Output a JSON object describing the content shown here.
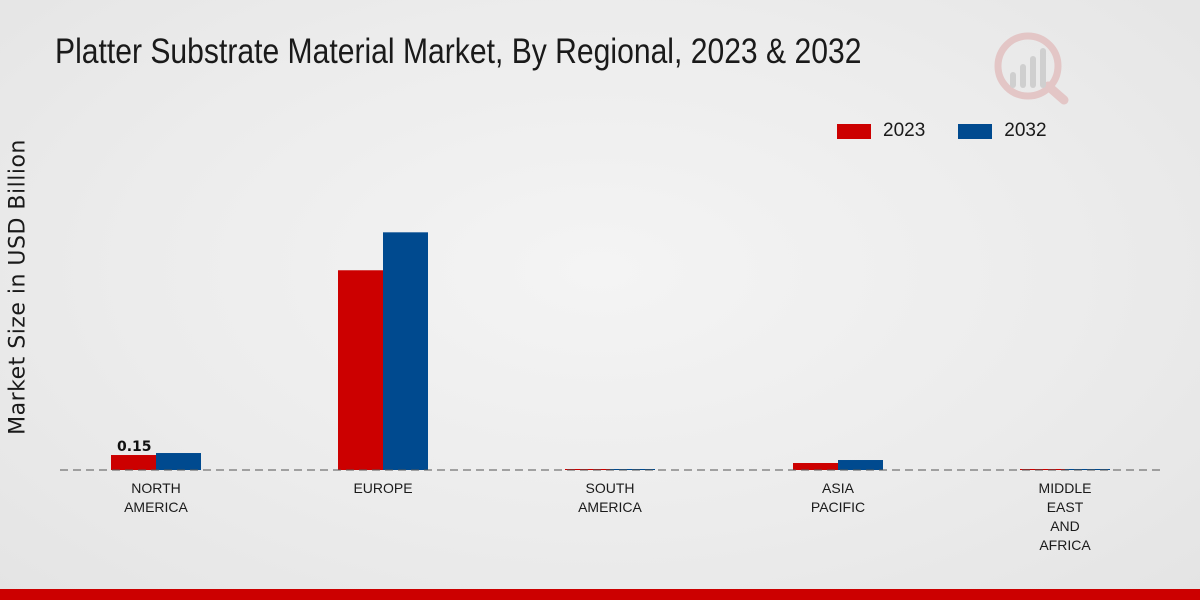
{
  "chart_data": {
    "type": "bar",
    "title": "Platter Substrate Material Market, By Regional, 2023 & 2032",
    "xlabel": "",
    "ylabel": "Market Size in USD Billion",
    "categories": [
      [
        "NORTH",
        "AMERICA"
      ],
      [
        "EUROPE"
      ],
      [
        "SOUTH",
        "AMERICA"
      ],
      [
        "ASIA",
        "PACIFIC"
      ],
      [
        "MIDDLE",
        "EAST",
        "AND",
        "AFRICA"
      ]
    ],
    "series": [
      {
        "name": "2023",
        "color": "#cc0000",
        "values": [
          0.15,
          2.0,
          0.005,
          0.07,
          0.005
        ]
      },
      {
        "name": "2032",
        "color": "#004a8f",
        "values": [
          0.17,
          2.38,
          0.006,
          0.1,
          0.006
        ]
      }
    ],
    "data_labels": [
      {
        "series": 0,
        "index": 0,
        "text": "0.15"
      }
    ],
    "ylim": [
      0,
      3.1
    ],
    "grid": false,
    "legend": "top-right"
  },
  "legend": {
    "items": [
      {
        "label": "2023",
        "color": "#cc0000"
      },
      {
        "label": "2032",
        "color": "#004a8f"
      }
    ]
  }
}
